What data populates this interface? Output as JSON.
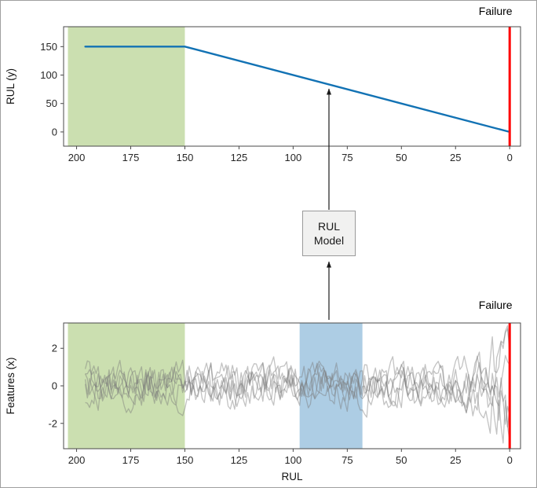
{
  "figure": {
    "background": "#ffffff",
    "border_color": "#9f9f9f",
    "axis_color": "#4a4a4a",
    "text_color": "#1a1a1a"
  },
  "model_box": {
    "line1": "RUL",
    "line2": "Model",
    "fill": "#f1f1f0",
    "border": "#9a9a9a"
  },
  "arrows": {
    "color": "#1a1a1a",
    "direction": "up",
    "count": 2
  },
  "chart_data": [
    {
      "id": "rul_target",
      "type": "line",
      "title": "",
      "xlabel": "",
      "ylabel": "RUL (y)",
      "x_ticks": [
        200,
        175,
        150,
        125,
        100,
        75,
        50,
        25,
        0
      ],
      "y_ticks": [
        0,
        50,
        100,
        150
      ],
      "xlim": [
        206,
        -5
      ],
      "ylim": [
        -25,
        185
      ],
      "x_axis_reversed": true,
      "grid": false,
      "legend": "none",
      "annotation": "Failure",
      "failure_line": {
        "x": 0,
        "color": "#ff0000",
        "width": 3
      },
      "regions": [
        {
          "name": "healthy-train-region",
          "x0": 204,
          "x1": 150,
          "color": "#77ac30",
          "opacity": 0.38
        }
      ],
      "series": [
        {
          "name": "rul-target-line",
          "color": "#1272b4",
          "width": 2.4,
          "points": [
            [
              196,
              150
            ],
            [
              150,
              150
            ],
            [
              0,
              0
            ]
          ]
        }
      ]
    },
    {
      "id": "features",
      "type": "line",
      "title": "",
      "xlabel": "RUL",
      "ylabel": "Features (x)",
      "x_ticks": [
        200,
        175,
        150,
        125,
        100,
        75,
        50,
        25,
        0
      ],
      "y_ticks": [
        -2,
        0,
        2
      ],
      "xlim": [
        206,
        -5
      ],
      "ylim": [
        -3.35,
        3.35
      ],
      "x_axis_reversed": true,
      "grid": false,
      "legend": "none",
      "annotation": "Failure",
      "failure_line": {
        "x": 0,
        "color": "#ff0000",
        "width": 3
      },
      "regions": [
        {
          "name": "healthy-train-region",
          "x0": 204,
          "x1": 150,
          "color": "#77ac30",
          "opacity": 0.38
        },
        {
          "name": "current-window-region",
          "x0": 97,
          "x1": 68,
          "color": "#4a90c4",
          "opacity": 0.45
        }
      ],
      "noise_series": {
        "description": "noisy sensor feature traces, mean 0, typical range -1.5 to 1.5, fanning out to about -2.8 to 2.8 near failure (RUL < 28)",
        "count": 6,
        "x_start": 196,
        "x_end": 0,
        "step": 1,
        "seed": 11,
        "base_amp": 0.8,
        "smooth": 0.5,
        "flare_start": 28,
        "flare_gain": 1.6,
        "color": "#7a7a7a",
        "opacity": 0.45,
        "width": 1.3
      }
    }
  ]
}
